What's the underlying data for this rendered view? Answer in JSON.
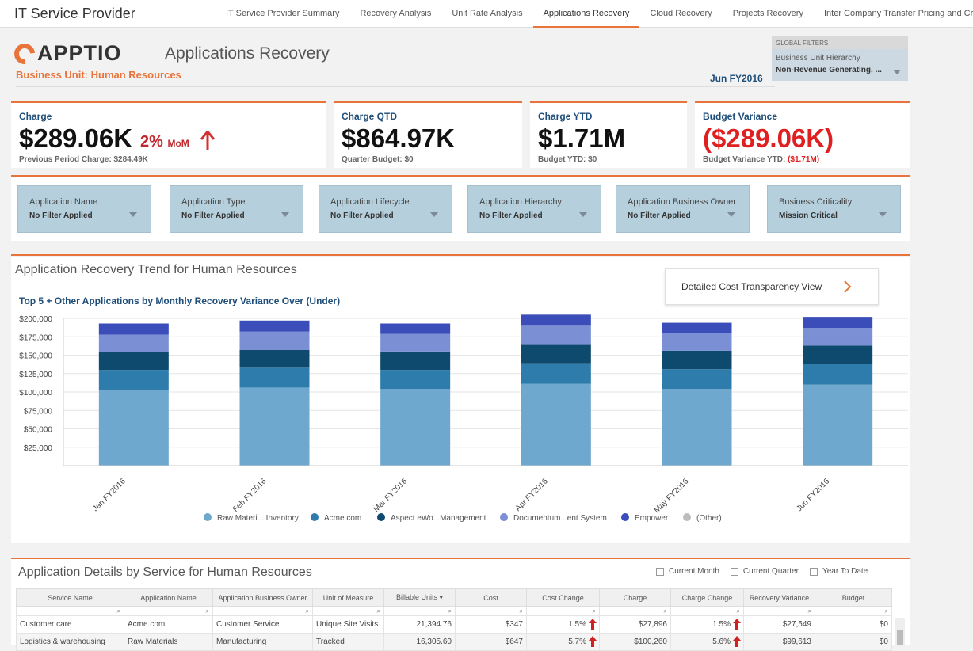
{
  "app_title": "IT Service Provider",
  "nav": [
    {
      "label": "IT Service Provider Summary"
    },
    {
      "label": "Recovery Analysis"
    },
    {
      "label": "Unit Rate Analysis"
    },
    {
      "label": "Applications Recovery"
    },
    {
      "label": "Cloud Recovery"
    },
    {
      "label": "Projects Recovery"
    },
    {
      "label": "Inter Company Transfer Pricing and Cro..."
    }
  ],
  "nav_active": "Applications Recovery",
  "logo_text": "APPTIO",
  "page_title": "Applications Recovery",
  "business_unit": "Business Unit: Human Resources",
  "period": "Jun FY2016",
  "global_filters": {
    "header": "GLOBAL FILTERS",
    "label": "Business Unit Hierarchy",
    "value": "Non-Revenue Generating, ..."
  },
  "kpis": {
    "charge": {
      "label": "Charge",
      "value": "$289.06K",
      "mom_value": "2%",
      "mom_unit": "MoM",
      "sub": "Previous Period Charge: $284.49K"
    },
    "charge_qtd": {
      "label": "Charge QTD",
      "value": "$864.97K",
      "sub": "Quarter Budget: $0"
    },
    "charge_ytd": {
      "label": "Charge YTD",
      "value": "$1.71M",
      "sub": "Budget YTD: $0"
    },
    "budget_variance": {
      "label": "Budget Variance",
      "value": "($289.06K)",
      "sub_prefix": "Budget Variance YTD:",
      "sub_value": "($1.71M)"
    }
  },
  "filters": [
    {
      "label": "Application Name",
      "value": "No Filter Applied"
    },
    {
      "label": "Application Type",
      "value": "No Filter Applied"
    },
    {
      "label": "Application Lifecycle",
      "value": "No Filter Applied"
    },
    {
      "label": "Application Hierarchy",
      "value": "No Filter Applied"
    },
    {
      "label": "Application Business Owner",
      "value": "No Filter Applied"
    },
    {
      "label": "Business Criticality",
      "value": "Mission Critical"
    }
  ],
  "trend": {
    "title": "Application Recovery Trend for Human Resources",
    "subtitle": "Top 5 + Other Applications by Monthly Recovery Variance Over (Under)",
    "button_label": "Detailed Cost Transparency View"
  },
  "colors": {
    "accent": "#e8743b",
    "series": [
      "#6fa8cf",
      "#2e7cab",
      "#0d4a6e",
      "#7b8fd4",
      "#3a4db8",
      "#bdbdbd"
    ]
  },
  "chart_data": {
    "type": "bar",
    "stacked": true,
    "title": "Top 5 + Other Applications by Monthly Recovery Variance Over (Under)",
    "categories": [
      "Jan FY2016",
      "Feb FY2016",
      "Mar FY2016",
      "Apr FY2016",
      "May FY2016",
      "Jun FY2016"
    ],
    "series": [
      {
        "name": "Raw Materi... Inventory",
        "values": [
          103000,
          106000,
          104000,
          111000,
          104000,
          110000
        ]
      },
      {
        "name": "Acme.com",
        "values": [
          27000,
          27000,
          26000,
          28000,
          27000,
          28000
        ]
      },
      {
        "name": "Aspect eWo...Management",
        "values": [
          24000,
          24000,
          25000,
          26000,
          25000,
          25000
        ]
      },
      {
        "name": "Documentum...ent System",
        "values": [
          24000,
          25000,
          24000,
          25000,
          24000,
          24000
        ]
      },
      {
        "name": "Empower",
        "values": [
          15000,
          15000,
          14000,
          15000,
          14000,
          15000
        ]
      },
      {
        "name": "(Other)",
        "values": [
          0,
          0,
          0,
          0,
          0,
          0
        ]
      }
    ],
    "ylim": [
      0,
      200000
    ],
    "yticks": [
      "$25,000",
      "$50,000",
      "$75,000",
      "$100,000",
      "$125,000",
      "$150,000",
      "$175,000",
      "$200,000"
    ],
    "ytick_values": [
      25000,
      50000,
      75000,
      100000,
      125000,
      150000,
      175000,
      200000
    ],
    "legend_position": "bottom"
  },
  "details": {
    "title": "Application Details by Service for Human Resources",
    "options": [
      "Current Month",
      "Current Quarter",
      "Year To Date"
    ],
    "columns": [
      "Service Name",
      "Application Name",
      "Application Business Owner",
      "Unit of Measure",
      "Billable Units ▾",
      "Cost",
      "Cost Change",
      "Charge",
      "Charge Change",
      "Recovery Variance",
      "Budget"
    ],
    "rows": [
      [
        "Customer care",
        "Acme.com",
        "Customer Service",
        "Unique Site Visits",
        "21,394.76",
        "$347",
        "1.5%",
        "$27,896",
        "1.5%",
        "$27,549",
        "$0"
      ],
      [
        "Logistics & warehousing",
        "Raw Materials",
        "Manufacturing",
        "Tracked",
        "16,305.60",
        "$647",
        "5.7%",
        "$100,260",
        "5.6%",
        "$99,613",
        "$0"
      ]
    ]
  }
}
